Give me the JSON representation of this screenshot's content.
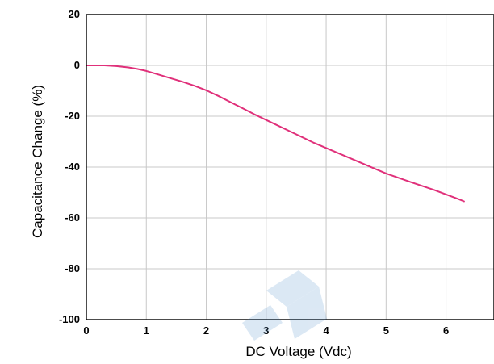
{
  "chart_data": {
    "type": "line",
    "title": "",
    "xlabel": "DC Voltage (Vdc)",
    "ylabel": "Capacitance Change (%)",
    "xlim": [
      0,
      6.8
    ],
    "ylim": [
      -100,
      20
    ],
    "x_ticks": [
      0,
      1,
      2,
      3,
      4,
      5,
      6
    ],
    "y_ticks": [
      20,
      0,
      -20,
      -40,
      -60,
      -80,
      -100
    ],
    "grid": true,
    "legend": "none",
    "series": [
      {
        "name": "",
        "color": "#e0307a",
        "x": [
          0,
          0.3,
          0.5,
          0.7,
          0.85,
          1.0,
          1.2,
          1.4,
          1.6,
          1.8,
          2.0,
          2.2,
          2.4,
          2.6,
          2.8,
          3.0,
          3.4,
          3.8,
          4.2,
          4.6,
          5.0,
          5.4,
          5.8,
          6.2,
          6.3
        ],
        "y": [
          0,
          0,
          -0.3,
          -0.8,
          -1.4,
          -2.2,
          -3.6,
          -5.0,
          -6.4,
          -8.0,
          -9.8,
          -12.0,
          -14.4,
          -16.8,
          -19.2,
          -21.5,
          -26.0,
          -30.5,
          -34.5,
          -38.5,
          -42.5,
          -45.8,
          -49.0,
          -52.5,
          -53.5
        ]
      }
    ]
  }
}
